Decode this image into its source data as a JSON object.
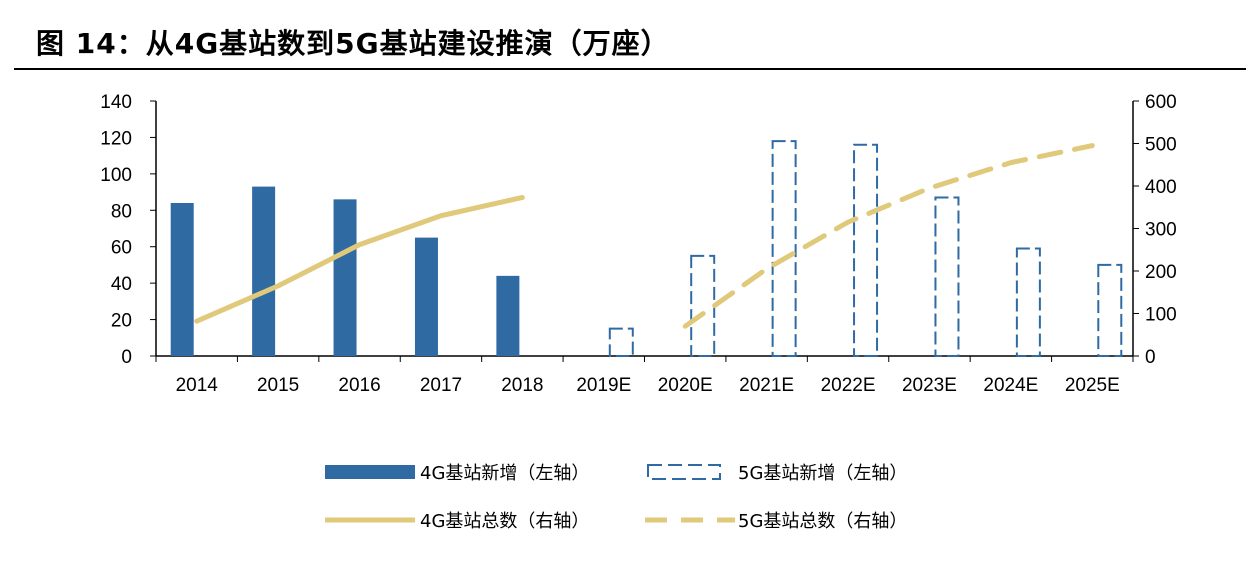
{
  "title": "图 14：从4G基站数到5G基站建设推演（万座）",
  "chart_data": {
    "type": "bar",
    "categories": [
      "2014",
      "2015",
      "2016",
      "2017",
      "2018",
      "2019E",
      "2020E",
      "2021E",
      "2022E",
      "2023E",
      "2024E",
      "2025E"
    ],
    "ylim_left": [
      0,
      140
    ],
    "yticks_left": [
      0,
      20,
      40,
      60,
      80,
      100,
      120,
      140
    ],
    "ylim_right": [
      0,
      600
    ],
    "yticks_right": [
      0,
      100,
      200,
      300,
      400,
      500,
      600
    ],
    "grid": false,
    "legend_position": "bottom",
    "colors": {
      "bar4g": "#2f6aa3",
      "bar5g": "#2f6aa3",
      "line": "#e0c97a"
    },
    "series": [
      {
        "name": "4G基站新增（左轴）",
        "type": "bar",
        "axis": "left",
        "style": "solid",
        "values": [
          84,
          93,
          86,
          65,
          44,
          null,
          null,
          null,
          null,
          null,
          null,
          null
        ]
      },
      {
        "name": "5G基站新增（左轴）",
        "type": "bar",
        "axis": "left",
        "style": "dashed",
        "values": [
          null,
          null,
          null,
          null,
          null,
          15,
          55,
          118,
          116,
          87,
          59,
          50
        ]
      },
      {
        "name": "4G基站总数（右轴）",
        "type": "line",
        "axis": "right",
        "style": "solid",
        "values": [
          82,
          165,
          262,
          330,
          373,
          null,
          null,
          null,
          null,
          null,
          null,
          null
        ]
      },
      {
        "name": "5G基站总数（右轴）",
        "type": "line",
        "axis": "right",
        "style": "dashed",
        "values": [
          null,
          null,
          null,
          null,
          null,
          null,
          70,
          205,
          315,
          395,
          455,
          495
        ]
      }
    ]
  }
}
